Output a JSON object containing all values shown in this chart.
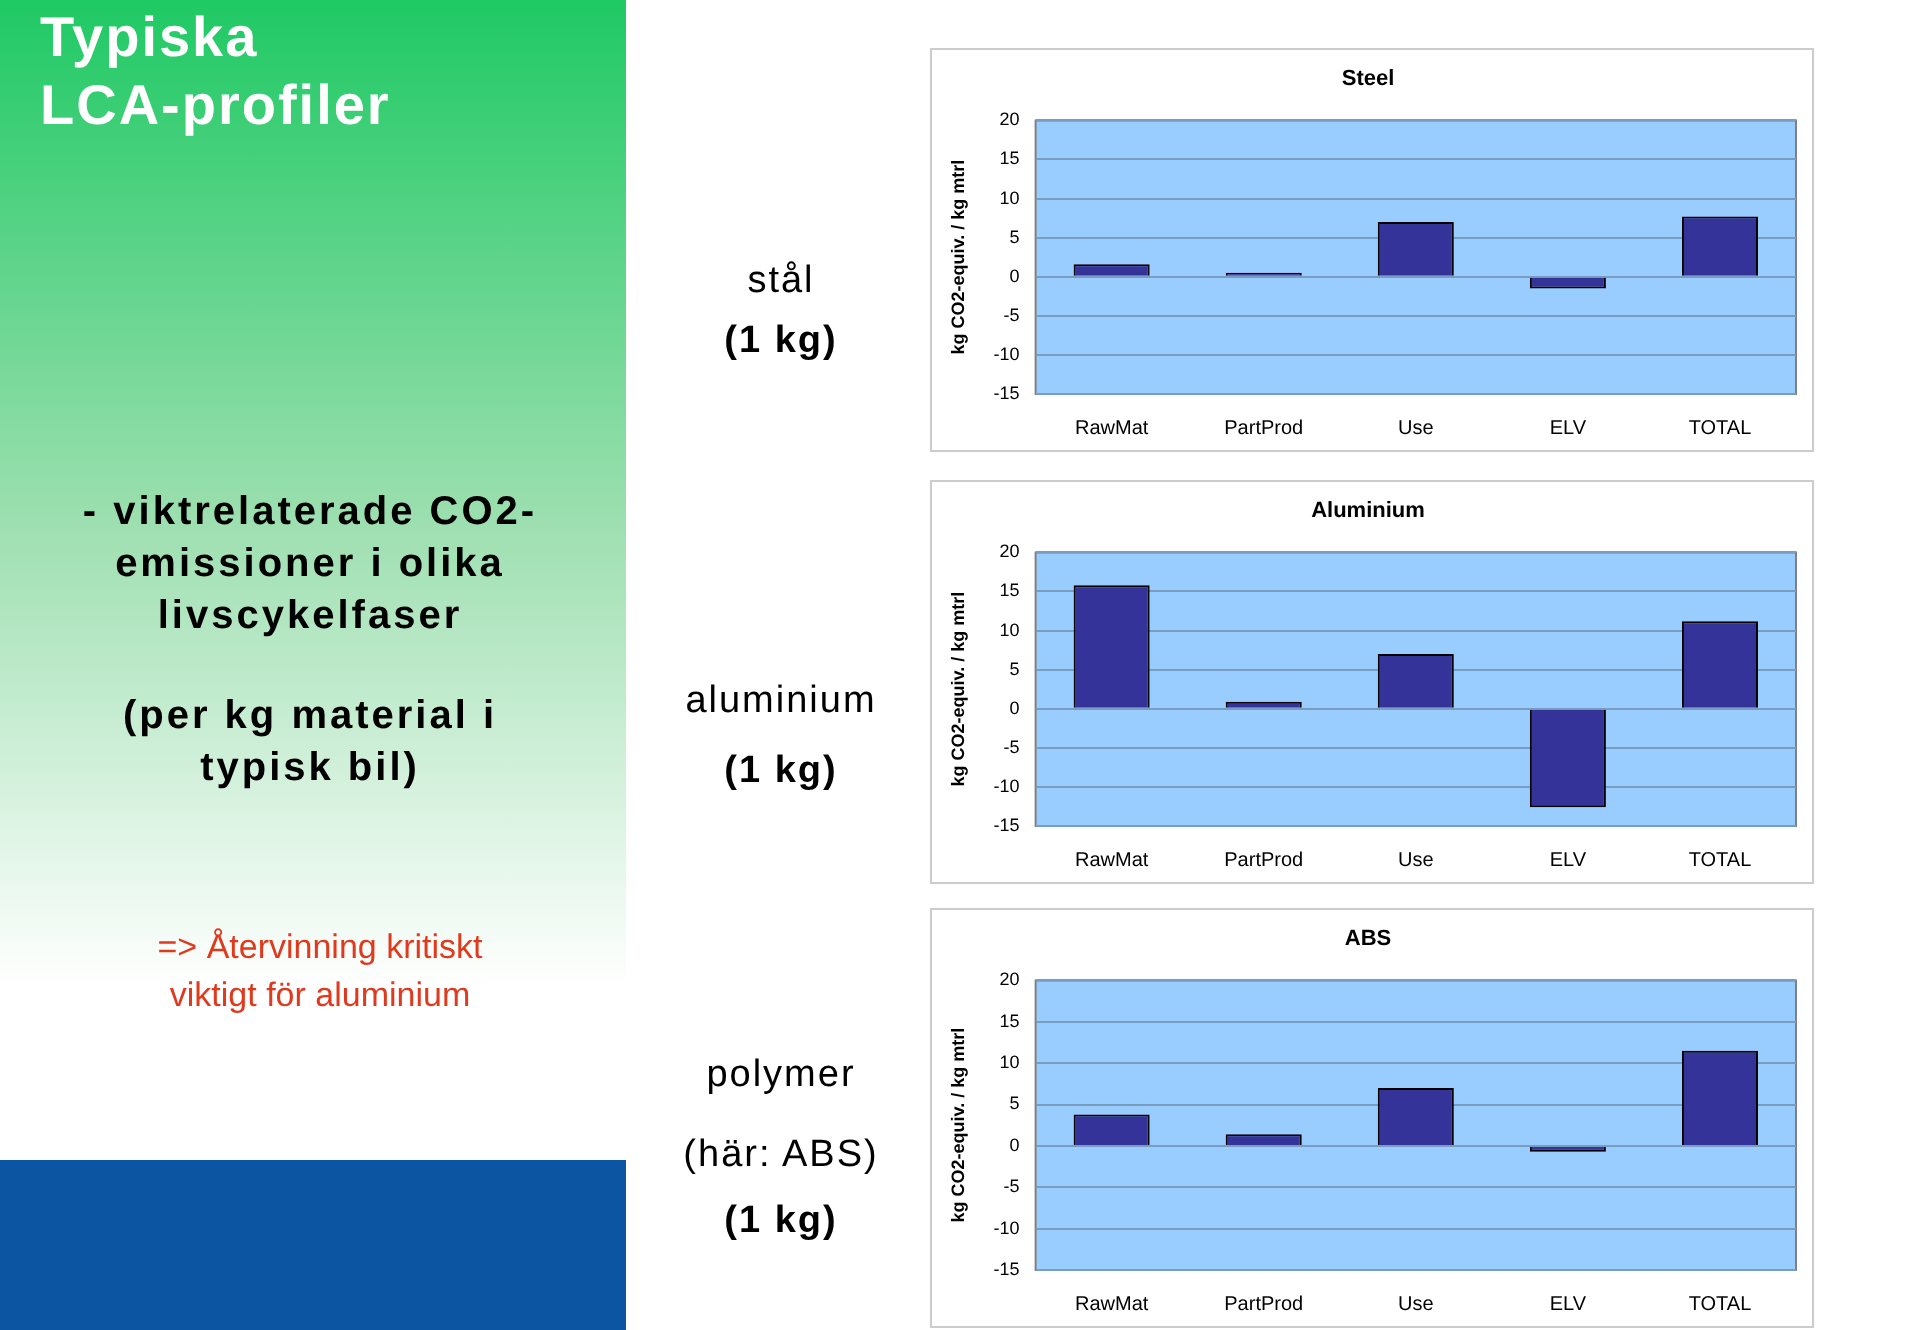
{
  "chart_data": [
    {
      "type": "bar",
      "title": "Steel",
      "ylabel": "kg CO2-equiv. / kg mtrl",
      "annotations": [
        "Typiska LCA-profiler",
        "- viktrelaterade CO2-emissioner i olika livscykelfaser",
        "(per kg material i typisk bil)",
        "=> Återvinning kritiskt viktigt för aluminium",
        "stål",
        "(1 kg)"
      ],
      "categories": [
        "RawMat",
        "PartProd",
        "Use",
        "ELV",
        "TOTAL"
      ],
      "values": [
        1.6,
        0.5,
        7.0,
        -1.5,
        7.7
      ],
      "color": "#333399",
      "ylim": [
        -15,
        20
      ],
      "yticks": [
        -15,
        -10,
        -5,
        0,
        5,
        10,
        15,
        20
      ],
      "grid": "y",
      "legend": false
    },
    {
      "type": "bar",
      "title": "Aluminium",
      "ylabel": "kg CO2-equiv. / kg mtrl",
      "annotations": [
        "aluminium",
        "(1 kg)"
      ],
      "categories": [
        "RawMat",
        "PartProd",
        "Use",
        "ELV",
        "TOTAL"
      ],
      "values": [
        15.8,
        0.9,
        7.0,
        -12.6,
        11.2
      ],
      "color": "#333399",
      "ylim": [
        -15,
        20
      ],
      "yticks": [
        -15,
        -10,
        -5,
        0,
        5,
        10,
        15,
        20
      ],
      "grid": "y",
      "legend": false
    },
    {
      "type": "bar",
      "title": "ABS",
      "ylabel": "kg CO2-equiv. / kg mtrl",
      "annotations": [
        "polymer",
        "(här: ABS)",
        "(1 kg)"
      ],
      "categories": [
        "RawMat",
        "PartProd",
        "Use",
        "ELV",
        "TOTAL"
      ],
      "values": [
        3.8,
        1.4,
        7.0,
        -0.7,
        11.5
      ],
      "color": "#333399",
      "ylim": [
        -15,
        20
      ],
      "yticks": [
        -15,
        -10,
        -5,
        0,
        5,
        10,
        15,
        20
      ],
      "grid": "y",
      "legend": false
    }
  ]
}
